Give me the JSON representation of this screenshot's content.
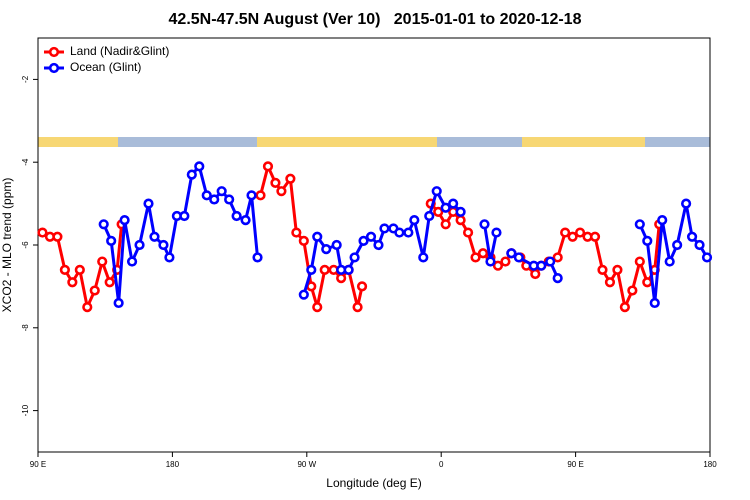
{
  "chart_data": {
    "type": "line",
    "title": "42.5N-47.5N August (Ver 10)   2015-01-01 to 2020-12-18",
    "x_label": "Longitude (deg E)",
    "y_label": "XCO2 - MLO trend (ppm)",
    "xlim": [
      90,
      540
    ],
    "ylim": [
      -11,
      -1
    ],
    "xticks": [
      {
        "value": 90,
        "label": "90 E"
      },
      180,
      {
        "value": 270,
        "label": "90 W"
      },
      {
        "value": 360,
        "label": "0"
      },
      {
        "value": 450,
        "label": "90 E"
      },
      {
        "value": 540,
        "label": "180"
      }
    ],
    "yticks": [
      -2,
      -4,
      -6,
      -8,
      -10
    ],
    "legend": "top-left",
    "series": [
      {
        "name": "Land (Nadir&Glint)",
        "color": "#ff0000",
        "x": [
          93,
          98,
          103,
          108,
          113,
          118,
          123,
          128,
          133,
          138,
          143,
          146,
          null,
          239,
          244,
          249,
          253,
          259,
          263,
          268,
          273,
          277,
          282,
          288,
          293,
          298,
          304,
          307,
          null,
          353,
          358,
          363,
          368,
          373,
          378,
          383,
          388,
          393,
          398,
          403,
          407,
          413,
          417,
          423,
          427,
          432,
          438,
          443,
          448,
          453,
          458,
          463,
          468,
          473,
          478,
          483,
          488,
          493,
          498,
          503,
          506
        ],
        "values": [
          -5.7,
          -5.8,
          -5.8,
          -6.6,
          -6.9,
          -6.6,
          -7.5,
          -7.1,
          -6.4,
          -6.9,
          -6.6,
          -5.5,
          null,
          -4.8,
          -4.1,
          -4.5,
          -4.7,
          -4.4,
          -5.7,
          -5.9,
          -7.0,
          -7.5,
          -6.6,
          -6.6,
          -6.8,
          -6.6,
          -7.5,
          -7.0,
          null,
          -5.0,
          -5.2,
          -5.5,
          -5.2,
          -5.4,
          -5.7,
          -6.3,
          -6.2,
          -6.3,
          -6.5,
          -6.4,
          -6.2,
          -6.3,
          -6.5,
          -6.7,
          -6.5,
          -6.4,
          -6.3,
          -5.7,
          -5.8,
          -5.7,
          -5.8,
          -5.8,
          -6.6,
          -6.9,
          -6.6,
          -7.5,
          -7.1,
          -6.4,
          -6.9,
          -6.6,
          -5.5
        ]
      },
      {
        "name": "Ocean (Glint)",
        "color": "#0000ff",
        "x": [
          134,
          139,
          144,
          148,
          153,
          158,
          164,
          168,
          174,
          178,
          183,
          188,
          193,
          198,
          203,
          208,
          213,
          218,
          223,
          229,
          233,
          237,
          null,
          268,
          273,
          277,
          283,
          290,
          293,
          298,
          302,
          308,
          313,
          318,
          322,
          328,
          332,
          338,
          342,
          348,
          352,
          357,
          363,
          368,
          373,
          null,
          389,
          393,
          397,
          null,
          407,
          412,
          422,
          427,
          433,
          438,
          null,
          493,
          498,
          503,
          508,
          513,
          518,
          524,
          528,
          533,
          538
        ],
        "values": [
          -5.5,
          -5.9,
          -7.4,
          -5.4,
          -6.4,
          -6.0,
          -5.0,
          -5.8,
          -6.0,
          -6.3,
          -5.3,
          -5.3,
          -4.3,
          -4.1,
          -4.8,
          -4.9,
          -4.7,
          -4.9,
          -5.3,
          -5.4,
          -4.8,
          -6.3,
          null,
          -7.2,
          -6.6,
          -5.8,
          -6.1,
          -6.0,
          -6.6,
          -6.6,
          -6.3,
          -5.9,
          -5.8,
          -6.0,
          -5.6,
          -5.6,
          -5.7,
          -5.7,
          -5.4,
          -6.3,
          -5.3,
          -4.7,
          -5.1,
          -5.0,
          -5.2,
          null,
          -5.5,
          -6.4,
          -5.7,
          null,
          -6.2,
          -6.3,
          -6.5,
          -6.5,
          -6.4,
          -6.8,
          null,
          -5.5,
          -5.9,
          -7.4,
          -5.4,
          -6.4,
          -6.0,
          -5.0,
          -5.8,
          -6.0,
          -6.3
        ]
      }
    ]
  }
}
